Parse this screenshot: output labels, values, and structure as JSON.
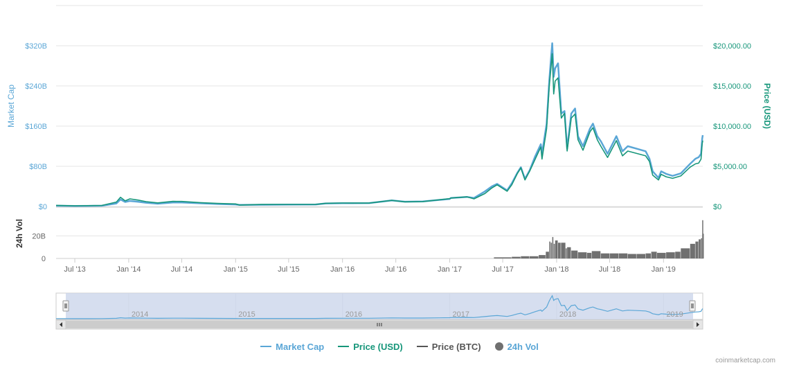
{
  "colors": {
    "market_cap": "#5aa6d6",
    "price_usd": "#16967a",
    "price_btc": "#555555",
    "volume": "#707070",
    "market_cap_axis": "#5aa6d6",
    "price_axis": "#16967a",
    "navigator_mask": "#ccd6eb"
  },
  "legend": {
    "market_cap": "Market Cap",
    "price_usd": "Price (USD)",
    "price_btc": "Price (BTC)",
    "volume": "24h Vol"
  },
  "credits": "coinmarketcap.com",
  "chart_data": [
    {
      "type": "line",
      "ylabel_left": "Market Cap",
      "ylabel_right": "Price (USD)",
      "left_ticks": [
        "$0",
        "$80B",
        "$160B",
        "$240B",
        "$320B"
      ],
      "left_tick_values": [
        0,
        80,
        160,
        240,
        320
      ],
      "right_ticks": [
        "$0",
        "$5,000.00",
        "$10,000.00",
        "$15,000.00",
        "$20,000.00"
      ],
      "right_tick_values": [
        0,
        5000,
        10000,
        15000,
        20000
      ],
      "x_ticks": [
        "Jul '13",
        "Jan '14",
        "Jul '14",
        "Jan '15",
        "Jul '15",
        "Jan '16",
        "Jul '16",
        "Jan '17",
        "Jul '17",
        "Jan '18",
        "Jul '18",
        "Jan '19"
      ],
      "x_tick_dates": [
        "2013-07-01",
        "2014-01-01",
        "2014-07-01",
        "2015-01-01",
        "2015-07-01",
        "2016-01-01",
        "2016-07-01",
        "2017-01-01",
        "2017-07-01",
        "2018-01-01",
        "2018-07-01",
        "2019-01-01"
      ],
      "x_range": [
        "2013-04-28",
        "2019-05-15"
      ],
      "ylim_left": [
        0,
        320
      ],
      "ylim_right": [
        0,
        20000
      ],
      "grid": true,
      "series": [
        {
          "name": "Market Cap",
          "unit": "USD billions",
          "x": [
            "2013-04-28",
            "2013-07-01",
            "2013-10-01",
            "2013-11-20",
            "2013-12-04",
            "2013-12-20",
            "2014-01-05",
            "2014-02-01",
            "2014-03-01",
            "2014-04-10",
            "2014-06-01",
            "2014-07-01",
            "2014-09-01",
            "2014-11-01",
            "2015-01-01",
            "2015-01-14",
            "2015-04-01",
            "2015-07-01",
            "2015-10-01",
            "2015-11-04",
            "2016-01-01",
            "2016-04-01",
            "2016-06-17",
            "2016-08-01",
            "2016-10-01",
            "2017-01-01",
            "2017-01-05",
            "2017-03-01",
            "2017-03-25",
            "2017-05-01",
            "2017-05-25",
            "2017-06-12",
            "2017-07-16",
            "2017-08-01",
            "2017-08-20",
            "2017-09-01",
            "2017-09-15",
            "2017-10-01",
            "2017-10-20",
            "2017-11-08",
            "2017-11-12",
            "2017-11-28",
            "2017-12-07",
            "2017-12-12",
            "2017-12-17",
            "2017-12-22",
            "2017-12-27",
            "2018-01-06",
            "2018-01-17",
            "2018-01-28",
            "2018-02-06",
            "2018-02-20",
            "2018-03-05",
            "2018-03-15",
            "2018-04-01",
            "2018-04-25",
            "2018-05-05",
            "2018-05-20",
            "2018-06-01",
            "2018-06-24",
            "2018-07-24",
            "2018-08-14",
            "2018-09-01",
            "2018-10-01",
            "2018-11-01",
            "2018-11-14",
            "2018-11-25",
            "2018-12-15",
            "2018-12-24",
            "2019-01-10",
            "2019-02-01",
            "2019-03-01",
            "2019-04-02",
            "2019-04-20",
            "2019-05-01",
            "2019-05-09",
            "2019-05-13",
            "2019-05-15"
          ],
          "values": [
            1.5,
            1.0,
            1.5,
            6.0,
            14.0,
            9.0,
            11.0,
            9.5,
            7.5,
            5.5,
            8.0,
            8.0,
            6.3,
            5.0,
            4.0,
            3.0,
            3.5,
            3.8,
            4.0,
            6.0,
            6.5,
            6.7,
            12.0,
            9.5,
            10.0,
            15.0,
            17.0,
            19.0,
            17.0,
            30.0,
            40.0,
            45.0,
            32.0,
            46.0,
            67.0,
            78.0,
            55.0,
            72.0,
            100.0,
            124.0,
            105.0,
            165.0,
            250.0,
            290.0,
            325.0,
            258.0,
            275.0,
            285.0,
            185.0,
            190.0,
            115.0,
            185.0,
            195.0,
            140.0,
            120.0,
            155.0,
            165.0,
            140.0,
            130.0,
            105.0,
            140.0,
            110.0,
            120.0,
            115.0,
            110.0,
            95.0,
            70.0,
            57.0,
            70.0,
            65.0,
            61.0,
            66.0,
            85.0,
            95.0,
            98.0,
            105.0,
            135.0,
            142.0
          ]
        },
        {
          "name": "Price (USD)",
          "unit": "USD",
          "x": [
            "2013-04-28",
            "2013-07-01",
            "2013-10-01",
            "2013-11-20",
            "2013-12-04",
            "2013-12-20",
            "2014-01-05",
            "2014-02-01",
            "2014-03-01",
            "2014-04-10",
            "2014-06-01",
            "2014-07-01",
            "2014-09-01",
            "2014-11-01",
            "2015-01-01",
            "2015-01-14",
            "2015-04-01",
            "2015-07-01",
            "2015-10-01",
            "2015-11-04",
            "2016-01-01",
            "2016-04-01",
            "2016-06-17",
            "2016-08-01",
            "2016-10-01",
            "2017-01-01",
            "2017-01-05",
            "2017-03-01",
            "2017-03-25",
            "2017-05-01",
            "2017-05-25",
            "2017-06-12",
            "2017-07-16",
            "2017-08-01",
            "2017-08-20",
            "2017-09-01",
            "2017-09-15",
            "2017-10-01",
            "2017-10-20",
            "2017-11-08",
            "2017-11-12",
            "2017-11-28",
            "2017-12-07",
            "2017-12-12",
            "2017-12-17",
            "2017-12-22",
            "2017-12-27",
            "2018-01-06",
            "2018-01-17",
            "2018-01-28",
            "2018-02-06",
            "2018-02-20",
            "2018-03-05",
            "2018-03-15",
            "2018-04-01",
            "2018-04-25",
            "2018-05-05",
            "2018-05-20",
            "2018-06-01",
            "2018-06-24",
            "2018-07-24",
            "2018-08-14",
            "2018-09-01",
            "2018-10-01",
            "2018-11-01",
            "2018-11-14",
            "2018-11-25",
            "2018-12-15",
            "2018-12-24",
            "2019-01-10",
            "2019-02-01",
            "2019-03-01",
            "2019-04-02",
            "2019-04-20",
            "2019-05-01",
            "2019-05-09",
            "2019-05-13",
            "2019-05-15"
          ],
          "values": [
            135,
            90,
            130,
            550,
            1150,
            700,
            950,
            800,
            600,
            450,
            640,
            630,
            480,
            380,
            315,
            180,
            250,
            260,
            260,
            400,
            430,
            420,
            760,
            580,
            610,
            970,
            1050,
            1200,
            950,
            1600,
            2300,
            2700,
            1900,
            2700,
            4100,
            4800,
            3300,
            4400,
            5900,
            7400,
            5900,
            9700,
            15000,
            17000,
            19000,
            14000,
            15600,
            16000,
            11000,
            11600,
            6900,
            11000,
            11500,
            8300,
            7000,
            9300,
            9800,
            8300,
            7500,
            6100,
            8200,
            6300,
            6900,
            6600,
            6300,
            5600,
            3900,
            3300,
            4000,
            3700,
            3500,
            3800,
            4900,
            5300,
            5400,
            5900,
            7800,
            8200
          ]
        },
        {
          "name": "24h Vol",
          "unit": "USD billions",
          "x": [
            "2017-06-01",
            "2017-08-01",
            "2017-09-01",
            "2017-10-01",
            "2017-11-01",
            "2017-11-25",
            "2017-12-07",
            "2017-12-12",
            "2017-12-17",
            "2017-12-22",
            "2017-12-27",
            "2018-01-06",
            "2018-01-16",
            "2018-02-01",
            "2018-02-06",
            "2018-02-20",
            "2018-03-15",
            "2018-04-15",
            "2018-05-01",
            "2018-06-01",
            "2018-07-01",
            "2018-08-01",
            "2018-09-01",
            "2018-10-01",
            "2018-11-01",
            "2018-11-20",
            "2018-12-10",
            "2019-01-10",
            "2019-02-10",
            "2019-03-01",
            "2019-04-02",
            "2019-04-20",
            "2019-05-01",
            "2019-05-09",
            "2019-05-13",
            "2019-05-15"
          ],
          "values": [
            1.0,
            1.5,
            2.0,
            2.0,
            3.0,
            6.0,
            15.0,
            14.0,
            19.0,
            13.0,
            16.0,
            14.0,
            14.0,
            9.0,
            10.0,
            7.0,
            5.5,
            5.0,
            6.5,
            4.5,
            4.5,
            4.5,
            4.0,
            4.0,
            4.5,
            6.0,
            5.0,
            5.5,
            6.0,
            9.0,
            13.0,
            15.0,
            17.0,
            18.0,
            34.0,
            22.0
          ]
        }
      ],
      "volume_axis": {
        "label": "24h Vol",
        "ticks": [
          "0",
          "20B"
        ],
        "tick_values": [
          0,
          20
        ],
        "ylim": [
          0,
          40
        ]
      }
    },
    {
      "type": "area",
      "role": "navigator",
      "x_ticks": [
        "2014",
        "2015",
        "2016",
        "2017",
        "2018",
        "2019"
      ],
      "x_tick_dates": [
        "2014-01-01",
        "2015-01-01",
        "2016-01-01",
        "2017-01-01",
        "2018-01-01",
        "2019-01-01"
      ],
      "series_ref": "Market Cap"
    }
  ]
}
